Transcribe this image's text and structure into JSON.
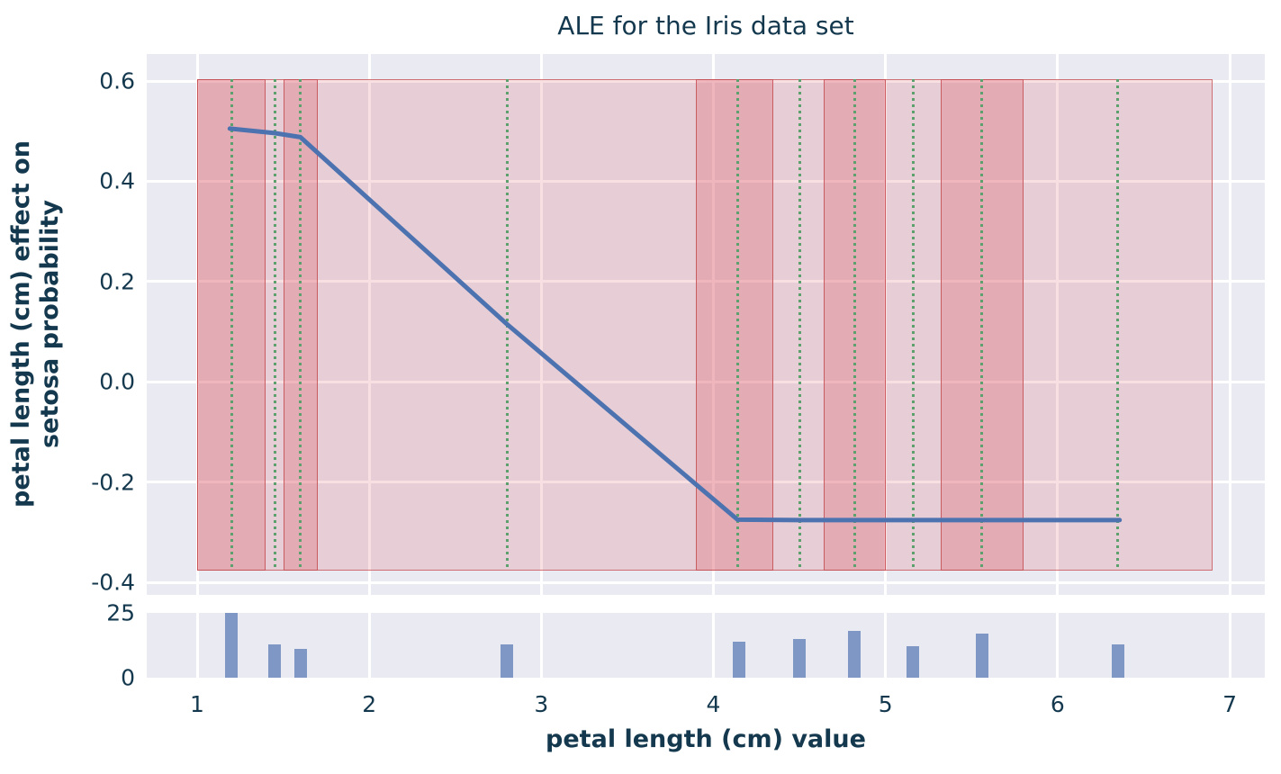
{
  "title": "ALE for the Iris data set",
  "x_axis": {
    "label": "petal length (cm) value"
  },
  "y_axis": {
    "label_line1": "petal length (cm) effect on",
    "label_line2": "setosa probability"
  },
  "colors": {
    "background": "#ffffff",
    "axes_background": "#eaeaf2",
    "gridline": "#ffffff",
    "ale_line": "#4c72b0",
    "band_fill": "#db5e6b",
    "band_border": "#c44e52",
    "quantile_line": "#5ca06e",
    "histogram_bar": "#7e97c4",
    "text": "#14384e"
  },
  "chart_data": {
    "type": "line",
    "title": "ALE for the Iris data set",
    "xlabel": "petal length (cm) value",
    "ylabel": "petal length (cm) effect on setosa probability",
    "xlim": [
      0.71,
      7.2
    ],
    "ylim": [
      -0.43,
      0.65
    ],
    "grid": true,
    "x_ticks": [
      {
        "v": 1,
        "label": "1"
      },
      {
        "v": 2,
        "label": "2"
      },
      {
        "v": 3,
        "label": "3"
      },
      {
        "v": 4,
        "label": "4"
      },
      {
        "v": 5,
        "label": "5"
      },
      {
        "v": 6,
        "label": "6"
      },
      {
        "v": 7,
        "label": "7"
      }
    ],
    "y_ticks": [
      {
        "v": 0.6,
        "label": "0.6"
      },
      {
        "v": 0.4,
        "label": "0.4"
      },
      {
        "v": 0.2,
        "label": "0.2"
      },
      {
        "v": 0.0,
        "label": "0.0"
      },
      {
        "v": -0.2,
        "label": "-0.2"
      },
      {
        "v": -0.4,
        "label": "-0.4"
      }
    ],
    "ale_line": {
      "x": [
        1.19,
        1.45,
        1.6,
        2.8,
        4.14,
        4.5,
        4.82,
        5.16,
        5.56,
        6.36
      ],
      "y": [
        0.505,
        0.496,
        0.488,
        0.115,
        -0.275,
        -0.276,
        -0.276,
        -0.276,
        -0.276,
        -0.276
      ]
    },
    "quantile_lines_x": [
      1.2,
      1.45,
      1.6,
      2.8,
      4.14,
      4.5,
      4.82,
      5.16,
      5.56,
      6.35
    ],
    "shaded_bands": {
      "y_top": 0.603,
      "y_bottom": -0.377,
      "light_span": [
        1.0,
        6.9
      ],
      "dark_spans": [
        [
          1.0,
          1.4
        ],
        [
          1.5,
          1.7
        ],
        [
          3.9,
          4.35
        ],
        [
          4.64,
          5.0
        ],
        [
          5.32,
          5.8
        ]
      ]
    },
    "histogram": {
      "ylim": [
        0,
        25
      ],
      "y_ticks": [
        {
          "v": 25,
          "label": "25"
        },
        {
          "v": 0,
          "label": "0"
        }
      ],
      "x": [
        1.2,
        1.45,
        1.6,
        2.8,
        4.15,
        4.5,
        4.82,
        5.16,
        5.56,
        6.35
      ],
      "counts": [
        25,
        13,
        11,
        13,
        14,
        15,
        18,
        12,
        17,
        13
      ],
      "bar_width_units": 0.075
    }
  }
}
